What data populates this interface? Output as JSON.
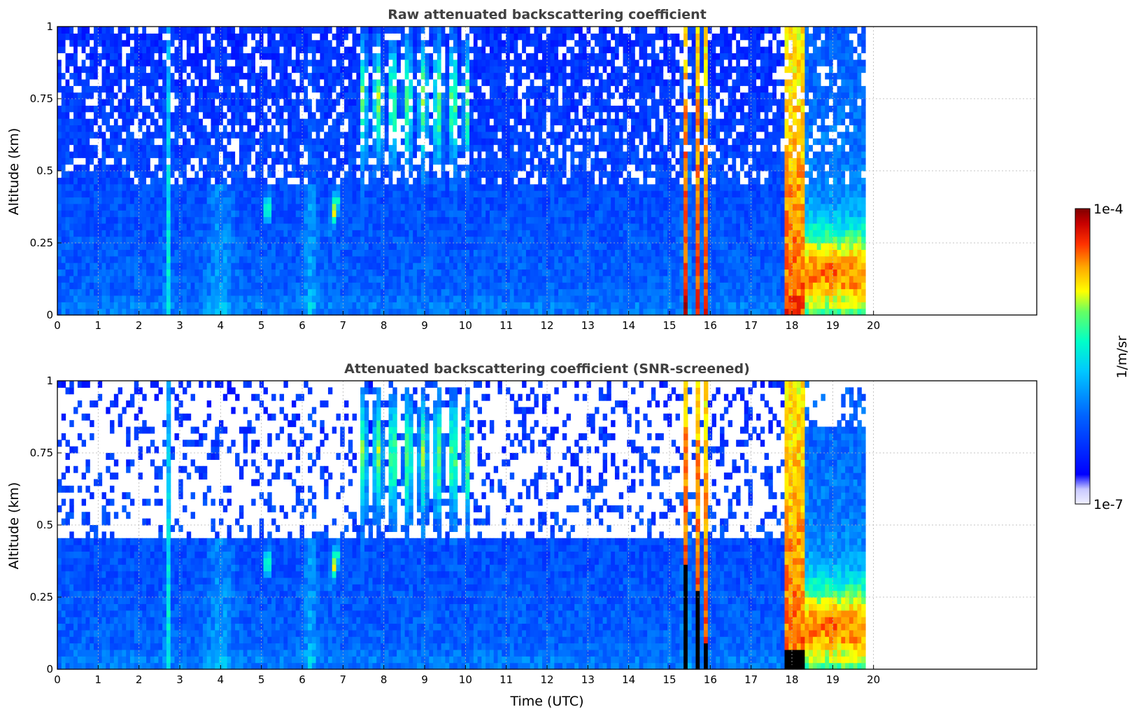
{
  "chart_data": [
    {
      "type": "heatmap",
      "title": "Raw attenuated backscattering coefficient",
      "xlabel": "",
      "ylabel": "Altitude (km)",
      "xlim": [
        0,
        24
      ],
      "ylim": [
        0,
        1
      ],
      "xticks": [
        "0",
        "1",
        "2",
        "3",
        "4",
        "5",
        "6",
        "7",
        "8",
        "9",
        "10",
        "11",
        "12",
        "13",
        "14",
        "15",
        "16",
        "17",
        "18",
        "19",
        "20"
      ],
      "yticks": [
        "0",
        "0.25",
        "0.5",
        "0.75",
        "1"
      ],
      "grid": true,
      "data_end_time": 19.8,
      "colorscale": "jet",
      "screened": false
    },
    {
      "type": "heatmap",
      "title": "Attenuated backscattering coefficient (SNR-screened)",
      "xlabel": "Time (UTC)",
      "ylabel": "Altitude (km)",
      "xlim": [
        0,
        24
      ],
      "ylim": [
        0,
        1
      ],
      "xticks": [
        "0",
        "1",
        "2",
        "3",
        "4",
        "5",
        "6",
        "7",
        "8",
        "9",
        "10",
        "11",
        "12",
        "13",
        "14",
        "15",
        "16",
        "17",
        "18",
        "19",
        "20"
      ],
      "yticks": [
        "0",
        "0.25",
        "0.5",
        "0.75",
        "1"
      ],
      "grid": true,
      "data_end_time": 19.8,
      "colorscale": "jet",
      "screened": true
    }
  ],
  "colorbar": {
    "label": "1/m/sr",
    "max_label": "1e-4",
    "min_label": "1e-7",
    "scale": "log",
    "colors": [
      "#f0f0ff",
      "#c8c8ff",
      "#0000ff",
      "#0064ff",
      "#00c8ff",
      "#00ffc8",
      "#64ff64",
      "#ffff00",
      "#ffaa00",
      "#ff3200",
      "#c80000",
      "#7f0000"
    ]
  }
}
